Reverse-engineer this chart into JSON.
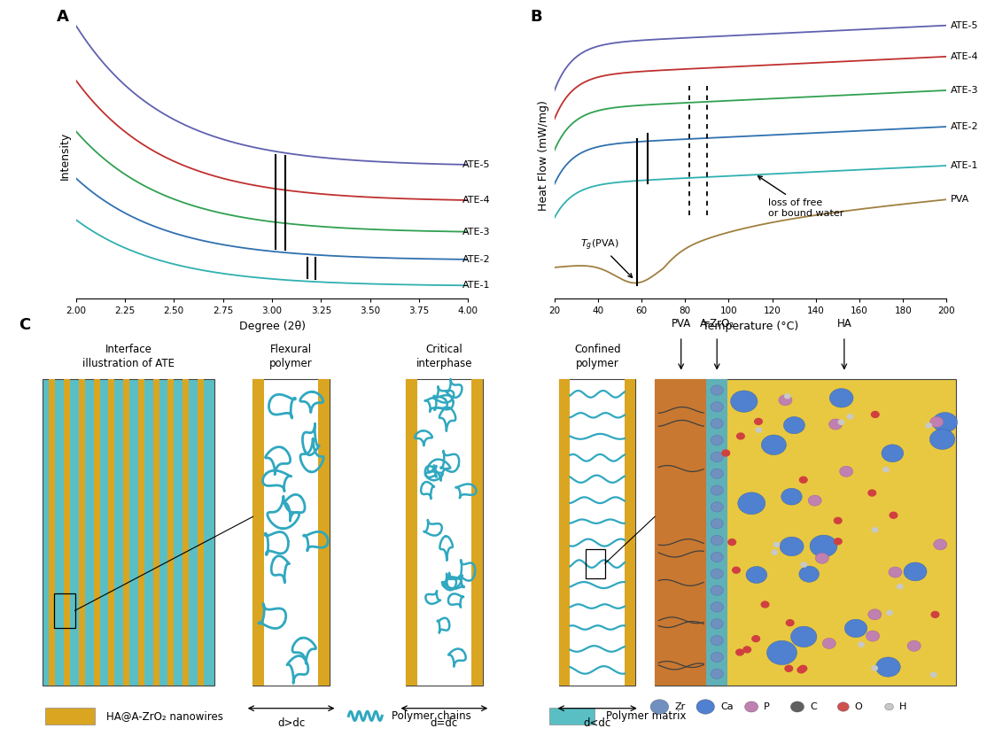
{
  "panel_A": {
    "xlabel": "Degree (2θ)",
    "ylabel": "Intensity",
    "xlim": [
      2.0,
      4.0
    ],
    "xticks": [
      2.0,
      2.25,
      2.5,
      2.75,
      3.0,
      3.25,
      3.5,
      3.75,
      4.0
    ],
    "series": [
      {
        "label": "ATE-5",
        "color": "#6060B0"
      },
      {
        "label": "ATE-4",
        "color": "#C03030"
      },
      {
        "label": "ATE-3",
        "color": "#30A050"
      },
      {
        "label": "ATE-2",
        "color": "#3070B0"
      },
      {
        "label": "ATE-1",
        "color": "#30B0B0"
      }
    ],
    "label_A": "A"
  },
  "panel_B": {
    "xlabel": "Temperature (°C)",
    "ylabel": "Heat Flow (mW/mg)",
    "xlim": [
      20,
      200
    ],
    "xticks": [
      20,
      40,
      60,
      80,
      100,
      120,
      140,
      160,
      180,
      200
    ],
    "series": [
      {
        "label": "ATE-5",
        "color": "#6060B0"
      },
      {
        "label": "ATE-4",
        "color": "#C03030"
      },
      {
        "label": "ATE-3",
        "color": "#30A050"
      },
      {
        "label": "ATE-2",
        "color": "#3070B0"
      },
      {
        "label": "ATE-1",
        "color": "#30B0B0"
      },
      {
        "label": "PVA",
        "color": "#A08040"
      }
    ],
    "label_B": "B"
  },
  "panel_C": {
    "label_C": "C",
    "titles": [
      "Interface\nillustration of ATE",
      "Flexural\npolymer",
      "Critical\ninterphase",
      "Confined\npolymer"
    ],
    "atom_labels": [
      "Zr",
      "Ca",
      "P",
      "C",
      "O",
      "H"
    ],
    "atom_colors": [
      "#7090C0",
      "#5080D0",
      "#C080B0",
      "#606060",
      "#D05050",
      "#C8C8C8"
    ],
    "header_labels": [
      "PVA",
      "A-ZrO₂",
      "HA"
    ],
    "d_labels": [
      "d>dc",
      "d=dc",
      "d<dc"
    ]
  },
  "colors": {
    "YELLOW": "#DAA520",
    "CYAN_BG": "#5ABFC5",
    "CYAN_CHAIN": "#30A8C0",
    "WHITE": "#FFFFFF",
    "HA_BG": "#E8C840",
    "PVA_REGION": "#C87830",
    "ZRO_REGION": "#60B0B8"
  },
  "bg_color": "#FFFFFF"
}
